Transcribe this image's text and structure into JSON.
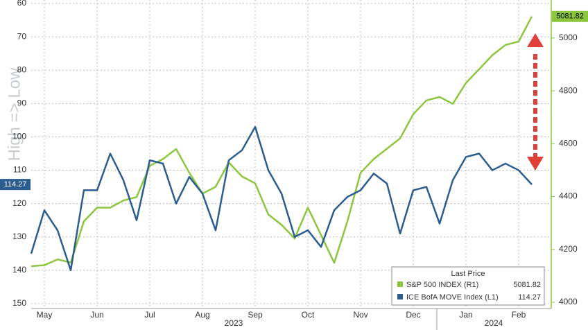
{
  "chart_data": {
    "type": "line",
    "ylabel": "High => Low",
    "categories": [
      null,
      "May",
      null,
      null,
      null,
      "Jun",
      null,
      null,
      null,
      "Jul",
      null,
      null,
      null,
      "Aug",
      null,
      null,
      null,
      "Sep",
      null,
      null,
      null,
      "Oct",
      null,
      null,
      null,
      "Nov",
      null,
      null,
      null,
      "Dec",
      null,
      null,
      null,
      "Jan",
      null,
      null,
      null,
      "Feb",
      null
    ],
    "years": [
      "2023",
      "2024"
    ],
    "legend_title": "Last Price",
    "series": [
      {
        "name": "S&P 500 INDEX (R1)",
        "color": "#8cc63f",
        "axis": "y2",
        "values": [
          4136,
          4140,
          4162,
          4150,
          4306,
          4358,
          4358,
          4385,
          4398,
          4516,
          4542,
          4580,
          4490,
          4411,
          4437,
          4529,
          4476,
          4450,
          4332,
          4293,
          4241,
          4358,
          4254,
          4149,
          4306,
          4490,
          4542,
          4581,
          4620,
          4712,
          4764,
          4777,
          4751,
          4830,
          4882,
          4935,
          4974,
          4987,
          5081.82
        ]
      },
      {
        "name": "ICE BofA MOVE Index (L1)",
        "color": "#2b5c8f",
        "axis": "y",
        "values": [
          135,
          122,
          128,
          140,
          116,
          116,
          105,
          113,
          125,
          107,
          108,
          120,
          112,
          117,
          128,
          107,
          104,
          97,
          110,
          117,
          130,
          128,
          133,
          122,
          118,
          116,
          111,
          114,
          129,
          116,
          115,
          126,
          113,
          106,
          105,
          110,
          108,
          110,
          114.27
        ]
      }
    ],
    "ylim": [
      60,
      150
    ],
    "y_inverted": true,
    "yticks": [
      60,
      70,
      80,
      90,
      100,
      110,
      120,
      130,
      140,
      150
    ],
    "y2lim": [
      3997,
      5131
    ],
    "y2ticks": [
      4000,
      4200,
      4400,
      4600,
      4800,
      5000
    ],
    "grid": true
  }
}
